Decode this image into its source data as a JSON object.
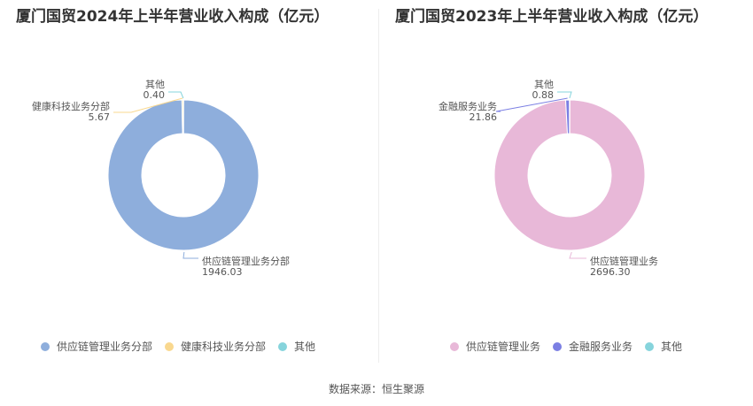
{
  "source": "数据来源：恒生聚源",
  "chart_data": [
    {
      "type": "pie",
      "donut": true,
      "title": "厦门国贸2024年上半年营业收入构成（亿元）",
      "slices": [
        {
          "name": "供应链管理业务分部",
          "value": 1946.03,
          "label": "1946.03",
          "color": "#8eaedc"
        },
        {
          "name": "健康科技业务分部",
          "value": 5.67,
          "label": "5.67",
          "color": "#f9d88f"
        },
        {
          "name": "其他",
          "value": 0.4,
          "label": "0.40",
          "color": "#86d4dc"
        }
      ],
      "legend_position": "bottom"
    },
    {
      "type": "pie",
      "donut": true,
      "title": "厦门国贸2023年上半年营业收入构成（亿元）",
      "slices": [
        {
          "name": "供应链管理业务",
          "value": 2696.3,
          "label": "2696.30",
          "color": "#e8b8d8"
        },
        {
          "name": "金融服务业务",
          "value": 21.86,
          "label": "21.86",
          "color": "#7b7fe3"
        },
        {
          "name": "其他",
          "value": 0.88,
          "label": "0.88",
          "color": "#86d4dc"
        }
      ],
      "legend_position": "bottom"
    }
  ]
}
